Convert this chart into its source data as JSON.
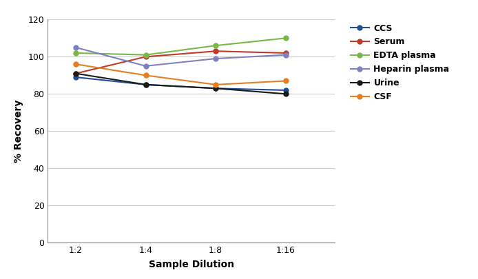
{
  "xlabel": "Sample Dilution",
  "ylabel": "% Recovery",
  "x_labels": [
    "1:2",
    "1:4",
    "1:8",
    "1:16"
  ],
  "x_positions": [
    0,
    1,
    2,
    3
  ],
  "series": [
    {
      "label": "CCS",
      "color": "#1f4e96",
      "values": [
        89,
        85,
        83,
        82
      ]
    },
    {
      "label": "Serum",
      "color": "#c0392b",
      "values": [
        91,
        100,
        103,
        102
      ]
    },
    {
      "label": "EDTA plasma",
      "color": "#7ab648",
      "values": [
        102,
        101,
        106,
        110
      ]
    },
    {
      "label": "Heparin plasma",
      "color": "#8080c0",
      "values": [
        105,
        95,
        99,
        101
      ]
    },
    {
      "label": "Urine",
      "color": "#1a1a1a",
      "values": [
        91,
        85,
        83,
        80
      ]
    },
    {
      "label": "CSF",
      "color": "#e67e22",
      "values": [
        96,
        90,
        85,
        87
      ]
    }
  ],
  "ylim": [
    0,
    120
  ],
  "yticks": [
    0,
    20,
    40,
    60,
    80,
    100,
    120
  ],
  "grid_color": "#cccccc",
  "bg_color": "#ffffff",
  "marker": "o",
  "marker_size": 5,
  "line_width": 1.5,
  "tick_fontsize": 9,
  "label_fontsize": 10,
  "legend_fontsize": 9
}
